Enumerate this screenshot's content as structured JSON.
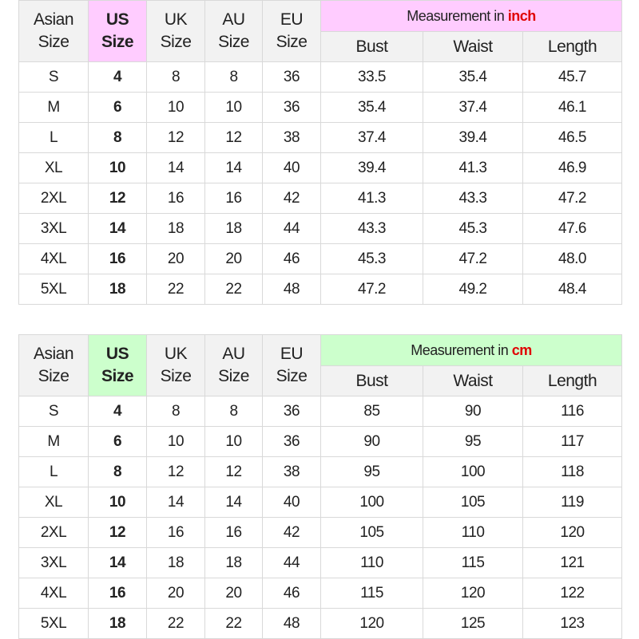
{
  "tables": [
    {
      "headers": {
        "asian": "Asian Size",
        "us": "US Size",
        "uk": "UK Size",
        "au": "AU Size",
        "eu": "EU Size",
        "measurement_prefix": "Measurement in",
        "unit": "inch",
        "bust": "Bust",
        "waist": "Waist",
        "length": "Length"
      },
      "accent_color": "#ffccff",
      "rows": [
        [
          "S",
          "4",
          "8",
          "8",
          "36",
          "33.5",
          "35.4",
          "45.7"
        ],
        [
          "M",
          "6",
          "10",
          "10",
          "36",
          "35.4",
          "37.4",
          "46.1"
        ],
        [
          "L",
          "8",
          "12",
          "12",
          "38",
          "37.4",
          "39.4",
          "46.5"
        ],
        [
          "XL",
          "10",
          "14",
          "14",
          "40",
          "39.4",
          "41.3",
          "46.9"
        ],
        [
          "2XL",
          "12",
          "16",
          "16",
          "42",
          "41.3",
          "43.3",
          "47.2"
        ],
        [
          "3XL",
          "14",
          "18",
          "18",
          "44",
          "43.3",
          "45.3",
          "47.6"
        ],
        [
          "4XL",
          "16",
          "20",
          "20",
          "46",
          "45.3",
          "47.2",
          "48.0"
        ],
        [
          "5XL",
          "18",
          "22",
          "22",
          "48",
          "47.2",
          "49.2",
          "48.4"
        ]
      ]
    },
    {
      "headers": {
        "asian": "Asian Size",
        "us": "US Size",
        "uk": "UK Size",
        "au": "AU Size",
        "eu": "EU Size",
        "measurement_prefix": "Measurement in",
        "unit": "cm",
        "bust": "Bust",
        "waist": "Waist",
        "length": "Length"
      },
      "accent_color": "#ccffcc",
      "rows": [
        [
          "S",
          "4",
          "8",
          "8",
          "36",
          "85",
          "90",
          "116"
        ],
        [
          "M",
          "6",
          "10",
          "10",
          "36",
          "90",
          "95",
          "117"
        ],
        [
          "L",
          "8",
          "12",
          "12",
          "38",
          "95",
          "100",
          "118"
        ],
        [
          "XL",
          "10",
          "14",
          "14",
          "40",
          "100",
          "105",
          "119"
        ],
        [
          "2XL",
          "12",
          "16",
          "16",
          "42",
          "105",
          "110",
          "120"
        ],
        [
          "3XL",
          "14",
          "18",
          "18",
          "44",
          "110",
          "115",
          "121"
        ],
        [
          "4XL",
          "16",
          "20",
          "20",
          "46",
          "115",
          "120",
          "122"
        ],
        [
          "5XL",
          "18",
          "22",
          "22",
          "48",
          "120",
          "125",
          "123"
        ]
      ]
    }
  ]
}
